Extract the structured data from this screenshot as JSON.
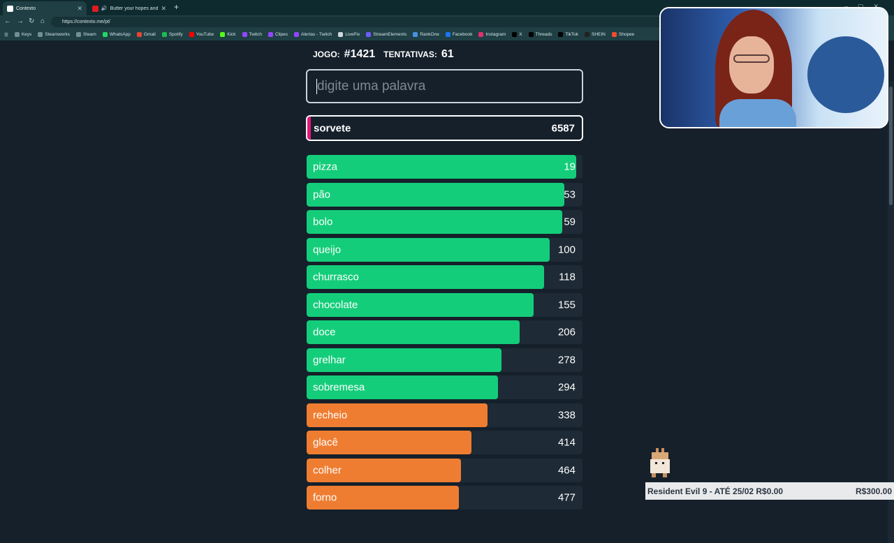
{
  "browser": {
    "tabs": [
      {
        "title": "Contexto",
        "active": true,
        "favicon_color": "#ffffff"
      },
      {
        "title": "Butter your hopes and take th",
        "active": false,
        "favicon_color": "#e01b22"
      }
    ],
    "url": "https://contexto.me/pt/",
    "bookmarks": [
      "Keys",
      "Steamworks",
      "Steam",
      "WhatsApp",
      "Gmail",
      "Spotify",
      "YouTube",
      "Kick",
      "Twitch",
      "Clipes",
      "Alertas - Twitch",
      "LivePix",
      "StreamElements",
      "RankOne",
      "Facebook",
      "Instagram",
      "X",
      "Threads",
      "TikTok",
      "SHEIN",
      "Shopee"
    ]
  },
  "game": {
    "game_label": "JOGO:",
    "game_number": "#1421",
    "attempts_label": "TENTATIVAS:",
    "attempts": "61",
    "input_placeholder": "digite uma palavra",
    "last_guess": {
      "word": "sorvete",
      "rank": "6587",
      "accent": "#e3177b"
    },
    "colors": {
      "green": "#14cd7a",
      "orange": "#ef7d31",
      "track": "#1e2a35"
    },
    "guesses": [
      {
        "word": "pizza",
        "rank": "19",
        "color": "green",
        "fill_pct": 97.6
      },
      {
        "word": "pão",
        "rank": "53",
        "color": "green",
        "fill_pct": 93.4
      },
      {
        "word": "bolo",
        "rank": "59",
        "color": "green",
        "fill_pct": 92.6
      },
      {
        "word": "queijo",
        "rank": "100",
        "color": "green",
        "fill_pct": 88.0
      },
      {
        "word": "churrasco",
        "rank": "118",
        "color": "green",
        "fill_pct": 86.0
      },
      {
        "word": "chocolate",
        "rank": "155",
        "color": "green",
        "fill_pct": 82.3
      },
      {
        "word": "doce",
        "rank": "206",
        "color": "green",
        "fill_pct": 77.2
      },
      {
        "word": "grelhar",
        "rank": "278",
        "color": "green",
        "fill_pct": 70.6
      },
      {
        "word": "sobremesa",
        "rank": "294",
        "color": "green",
        "fill_pct": 69.4
      },
      {
        "word": "recheio",
        "rank": "338",
        "color": "orange",
        "fill_pct": 65.6
      },
      {
        "word": "glacê",
        "rank": "414",
        "color": "orange",
        "fill_pct": 59.7
      },
      {
        "word": "colher",
        "rank": "464",
        "color": "orange",
        "fill_pct": 55.9
      },
      {
        "word": "forno",
        "rank": "477",
        "color": "orange",
        "fill_pct": 55.1
      }
    ]
  },
  "stream": {
    "ticker_goal": "Resident Evil 9 - ATÉ 25/02 R$0.00",
    "ticker_target": "R$300.00"
  }
}
